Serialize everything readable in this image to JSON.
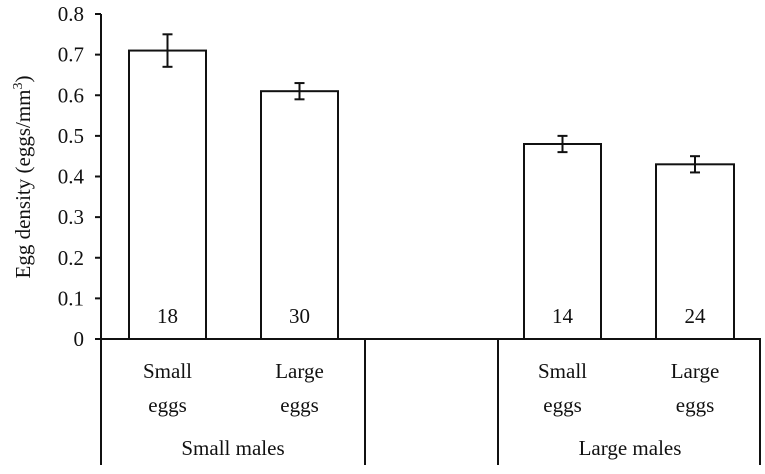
{
  "chart_data": {
    "type": "bar",
    "title": "",
    "xlabel": "",
    "ylabel": "Egg density (eggs/mm3)",
    "ylabel_parts": {
      "main": "Egg density (eggs/mm",
      "sup": "3",
      "close": ")"
    },
    "ylim": [
      0,
      0.8
    ],
    "yticks": [
      "0",
      "0.1",
      "0.2",
      "0.3",
      "0.4",
      "0.5",
      "0.6",
      "0.7",
      "0.8"
    ],
    "grid": false,
    "legend": null,
    "groups": [
      {
        "label": "Small males",
        "categories": [
          {
            "line1": "Small",
            "line2": "eggs",
            "value": 0.71,
            "error": 0.04,
            "n": "18"
          },
          {
            "line1": "Large",
            "line2": "eggs",
            "value": 0.61,
            "error": 0.02,
            "n": "30"
          }
        ]
      },
      {
        "label": "Large males",
        "categories": [
          {
            "line1": "Small",
            "line2": "eggs",
            "value": 0.48,
            "error": 0.02,
            "n": "14"
          },
          {
            "line1": "Large",
            "line2": "eggs",
            "value": 0.43,
            "error": 0.02,
            "n": "24"
          }
        ]
      }
    ],
    "categories": [
      "Small males / Small eggs",
      "Small males / Large eggs",
      "Large males / Small eggs",
      "Large males / Large eggs"
    ],
    "values": [
      0.71,
      0.61,
      0.48,
      0.43
    ],
    "errors": [
      0.04,
      0.02,
      0.02,
      0.02
    ],
    "sample_sizes": [
      "18",
      "30",
      "14",
      "24"
    ]
  }
}
